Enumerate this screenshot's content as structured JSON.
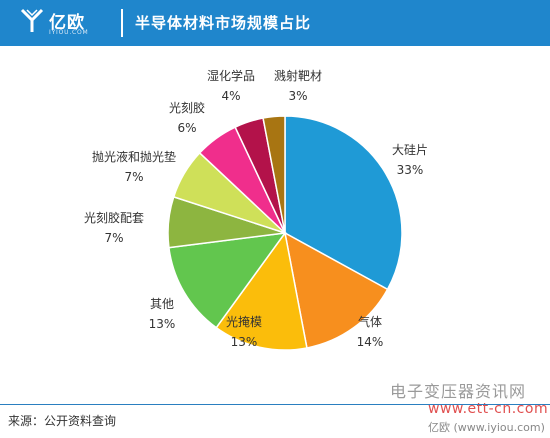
{
  "brand": {
    "name": "亿欧",
    "sub": "IYIOU.COM"
  },
  "title": "半导体材料市场规模占比",
  "source": "来源：公开资料查询",
  "watermark": {
    "line1": "电子变压器资讯网",
    "line2": "www.ett-cn.com",
    "line3": "亿欧 (www.iyiou.com)"
  },
  "chart_data": {
    "type": "pie",
    "title": "半导体材料市场规模占比",
    "slices": [
      {
        "label": "大硅片",
        "value": 33,
        "text": "33%",
        "color": "#1f9ad6"
      },
      {
        "label": "气体",
        "value": 14,
        "text": "14%",
        "color": "#f78f1e"
      },
      {
        "label": "光掩模",
        "value": 13,
        "text": "13%",
        "color": "#fbbd0b"
      },
      {
        "label": "其他",
        "value": 13,
        "text": "13%",
        "color": "#62c64e"
      },
      {
        "label": "光刻胶配套",
        "value": 7,
        "text": "7%",
        "color": "#8db540"
      },
      {
        "label": "抛光液和抛光垫",
        "value": 7,
        "text": "7%",
        "color": "#cfe059"
      },
      {
        "label": "光刻胶",
        "value": 6,
        "text": "6%",
        "color": "#f02e8c"
      },
      {
        "label": "湿化学品",
        "value": 4,
        "text": "4%",
        "color": "#b3124a"
      },
      {
        "label": "溅射靶材",
        "value": 3,
        "text": "3%",
        "color": "#a87512"
      }
    ]
  }
}
